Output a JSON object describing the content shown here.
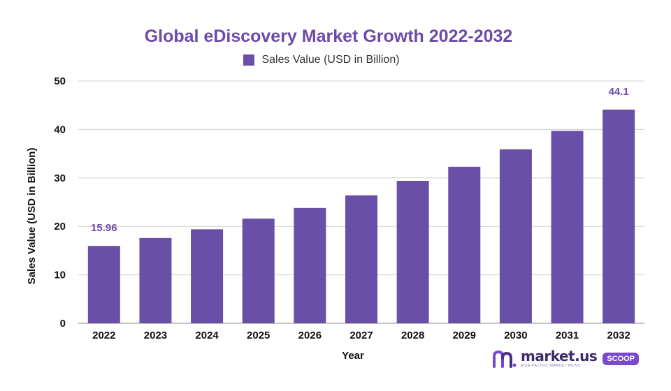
{
  "chart_data": {
    "type": "bar",
    "title": "Global eDiscovery Market Growth 2022-2032",
    "xlabel": "Year",
    "ylabel": "Sales Value (USD in Billion)",
    "categories": [
      "2022",
      "2023",
      "2024",
      "2025",
      "2026",
      "2027",
      "2028",
      "2029",
      "2030",
      "2031",
      "2032"
    ],
    "series": [
      {
        "name": "Sales Value (USD in Billion)",
        "values": [
          15.96,
          17.6,
          19.4,
          21.6,
          23.8,
          26.4,
          29.4,
          32.3,
          35.9,
          39.7,
          44.1
        ]
      }
    ],
    "data_labels": [
      {
        "index": 0,
        "text": "15.96"
      },
      {
        "index": 10,
        "text": "44.1"
      }
    ],
    "ylim": [
      0,
      50
    ],
    "yticks": [
      0,
      10,
      20,
      30,
      40,
      50
    ],
    "grid": true,
    "legend_position": "top-center",
    "colors": {
      "bar": "#6a4fa8",
      "title": "#6b4ba8",
      "data_label": "#6b4ba8",
      "grid": "#d0d0d0",
      "axis_text": "#111111"
    }
  },
  "branding": {
    "name": "market.us",
    "tagline": "ASIA-PACIFIC MARKET NEWS",
    "badge": "SCOOP",
    "icon": "market-us-logo-icon"
  }
}
